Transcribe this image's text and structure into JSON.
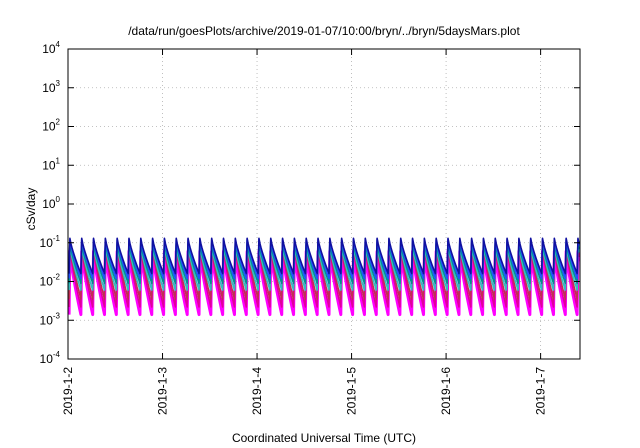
{
  "chart_data": {
    "type": "line",
    "title": "/data/run/goesPlots/archive/2019-01-07/10:00/bryn/../bryn/5daysMars.plot",
    "xlabel": "Coordinated Universal Time (UTC)",
    "ylabel": "cSv/day",
    "yscale": "log",
    "ylim": [
      0.0001,
      10000
    ],
    "xlim": [
      "2019-01-02",
      "2019-01-07T10:00"
    ],
    "grid": true,
    "y_ticks": [
      {
        "base": "10",
        "exp": "-4",
        "value": 0.0001
      },
      {
        "base": "10",
        "exp": "-3",
        "value": 0.001
      },
      {
        "base": "10",
        "exp": "-2",
        "value": 0.01
      },
      {
        "base": "10",
        "exp": "-1",
        "value": 0.1
      },
      {
        "base": "10",
        "exp": "0",
        "value": 1
      },
      {
        "base": "10",
        "exp": "1",
        "value": 10
      },
      {
        "base": "10",
        "exp": "2",
        "value": 100
      },
      {
        "base": "10",
        "exp": "3",
        "value": 1000
      },
      {
        "base": "10",
        "exp": "4",
        "value": 10000
      }
    ],
    "x_ticks": [
      {
        "label": "2019-1-2",
        "date": "2019-01-02"
      },
      {
        "label": "2019-1-3",
        "date": "2019-01-03"
      },
      {
        "label": "2019-1-4",
        "date": "2019-01-04"
      },
      {
        "label": "2019-1-5",
        "date": "2019-01-05"
      },
      {
        "label": "2019-1-6",
        "date": "2019-01-06"
      },
      {
        "label": "2019-1-7",
        "date": "2019-01-07"
      }
    ],
    "pattern": {
      "description": "repeating sawtooth dose-rate series",
      "cycles_per_day": 8,
      "phase_offset_days": 0.02
    },
    "series": [
      {
        "color": "#ff00ff",
        "peak": 0.06,
        "trough": 0.0014
      },
      {
        "color": "#e0009a",
        "peak": 0.075,
        "trough": 0.0022
      },
      {
        "color": "#c03050",
        "peak": 0.09,
        "trough": 0.0035
      },
      {
        "color": "#30c0c0",
        "peak": 0.085,
        "trough": 0.006
      },
      {
        "color": "#009090",
        "peak": 0.1,
        "trough": 0.009
      },
      {
        "color": "#2050ff",
        "peak": 0.12,
        "trough": 0.012
      },
      {
        "color": "#1010a0",
        "peak": 0.13,
        "trough": 0.016
      }
    ]
  }
}
